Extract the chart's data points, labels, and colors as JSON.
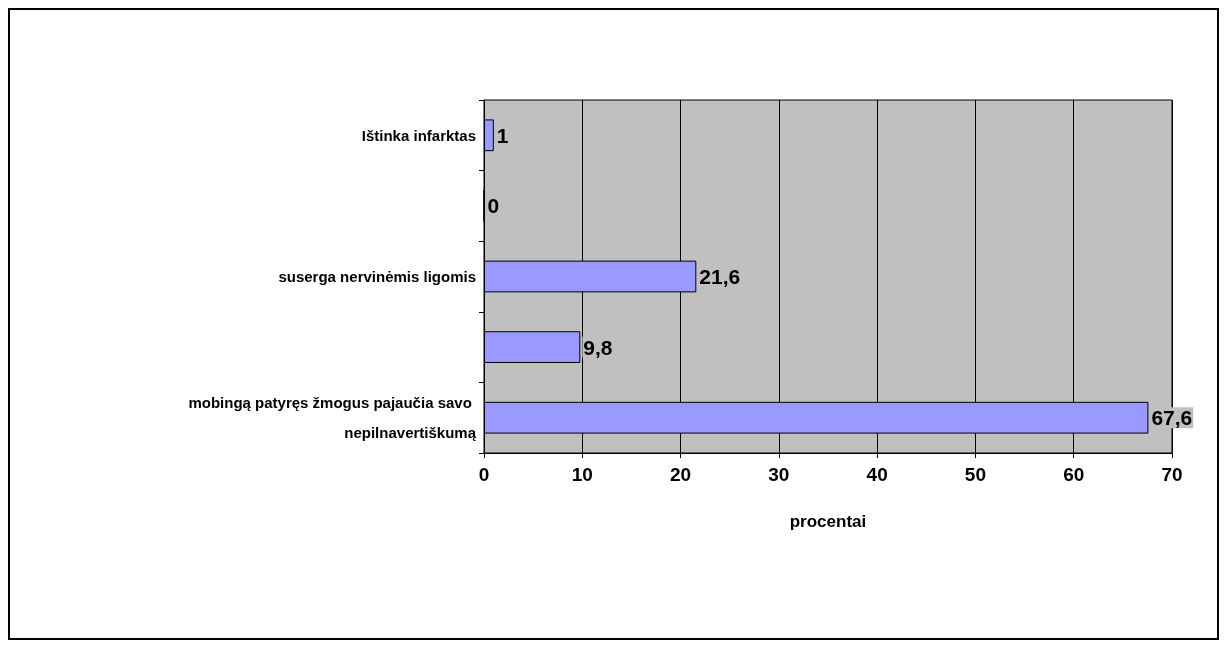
{
  "chart_data": {
    "type": "bar",
    "orientation": "horizontal",
    "xlabel": "procentai",
    "categories": [
      "Ištinka infarktas",
      null,
      "suserga nervinėmis ligomis",
      null,
      "mobingą patyręs žmogus pajaučia savo nepilnavertiškumą"
    ],
    "values": [
      1,
      0,
      21.6,
      9.8,
      67.6
    ],
    "value_labels": [
      "1",
      "0",
      "21,6",
      "9,8",
      "67,6"
    ],
    "color": "#9999ff",
    "xlim": [
      0,
      70
    ],
    "xticks": [
      0,
      10,
      20,
      30,
      40,
      50,
      60,
      70
    ],
    "grid": "x"
  }
}
